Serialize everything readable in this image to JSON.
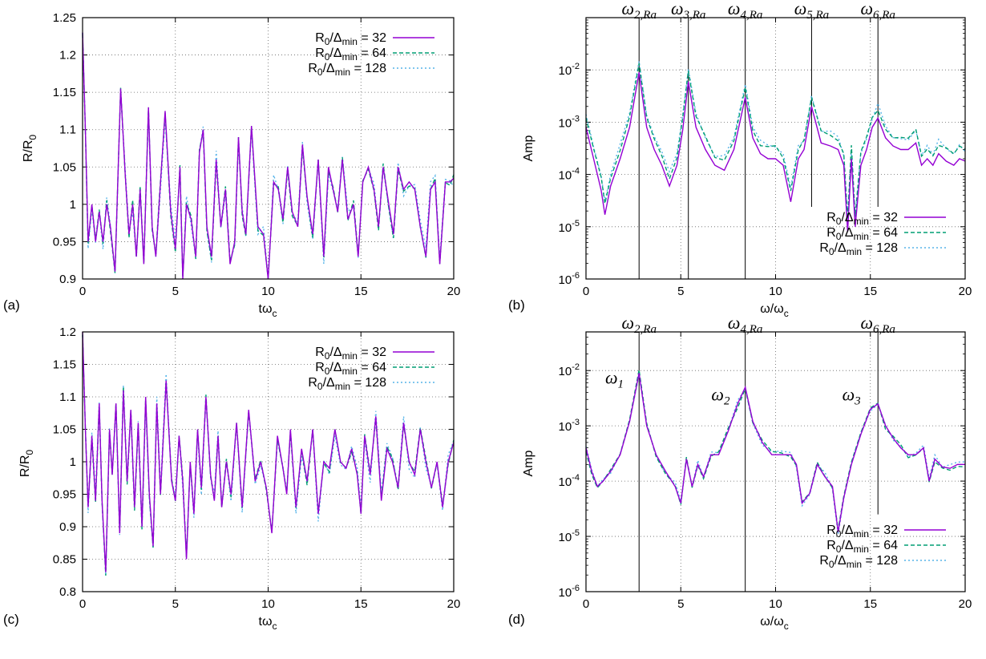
{
  "colors": {
    "r32": "#9400d3",
    "r64": "#009e73",
    "r128": "#56b4e9"
  },
  "legend_sub": "min",
  "legend_prefix": "R",
  "legend_zero": "0",
  "legend_mid": "/Δ",
  "chart_data": [
    {
      "panel": "(a)",
      "type": "line",
      "xlabel": "tω",
      "xlabel_sub": "c",
      "ylabel": "R/R",
      "ylabel_sub": "0",
      "xlim": [
        0,
        20
      ],
      "ylim": [
        0.9,
        1.25
      ],
      "yscale": "linear",
      "grid": true,
      "legend_position": "top-right",
      "xticks": [
        "0",
        "5",
        "10",
        "15",
        "20"
      ],
      "yticks": [
        "0.9",
        "0.95",
        "1",
        "1.05",
        "1.1",
        "1.15",
        "1.2",
        "1.25"
      ],
      "series": [
        {
          "name": "R0/Δmin = 32",
          "legend_value": "32",
          "style": "solid",
          "x": [
            0,
            0.15,
            0.3,
            0.5,
            0.7,
            0.9,
            1.1,
            1.3,
            1.5,
            1.75,
            2.05,
            2.3,
            2.5,
            2.7,
            2.9,
            3.1,
            3.3,
            3.55,
            3.75,
            3.95,
            4.15,
            4.45,
            4.75,
            5.0,
            5.25,
            5.4,
            5.6,
            5.85,
            6.1,
            6.3,
            6.5,
            6.7,
            6.95,
            7.2,
            7.45,
            7.7,
            7.95,
            8.2,
            8.4,
            8.6,
            8.8,
            9.1,
            9.45,
            9.75,
            10.0,
            10.3,
            10.55,
            10.8,
            11.05,
            11.3,
            11.6,
            11.85,
            12.1,
            12.4,
            12.7,
            13.0,
            13.25,
            13.5,
            13.75,
            14.0,
            14.3,
            14.6,
            14.85,
            15.1,
            15.4,
            15.7,
            15.95,
            16.2,
            16.5,
            16.75,
            17.0,
            17.3,
            17.6,
            17.9,
            18.2,
            18.5,
            18.75,
            19.0,
            19.25,
            19.55,
            19.8,
            20.0
          ],
          "y": [
            1.23,
            1.1,
            0.95,
            1.0,
            0.95,
            0.99,
            0.95,
            1.0,
            0.97,
            0.91,
            1.155,
            1.04,
            0.96,
            1.0,
            0.93,
            1.02,
            0.92,
            1.13,
            0.97,
            0.93,
            1.01,
            1.125,
            0.99,
            0.94,
            1.05,
            0.9,
            1.0,
            0.98,
            0.93,
            1.07,
            1.1,
            0.97,
            0.93,
            1.06,
            0.97,
            1.02,
            0.92,
            0.95,
            1.09,
            0.99,
            0.96,
            1.105,
            0.97,
            0.96,
            0.9,
            1.03,
            1.02,
            0.98,
            1.05,
            0.99,
            0.97,
            1.08,
            1.01,
            0.96,
            1.06,
            0.93,
            1.05,
            1.02,
            0.99,
            1.06,
            0.98,
            1.0,
            0.93,
            1.03,
            1.05,
            1.02,
            0.97,
            1.05,
            1.0,
            0.96,
            1.05,
            1.02,
            1.03,
            1.02,
            0.97,
            0.93,
            1.02,
            1.03,
            0.92,
            1.03,
            1.03,
            1.035
          ]
        },
        {
          "name": "R0/Δmin = 64",
          "legend_value": "64",
          "style": "dashed"
        },
        {
          "name": "R0/Δmin = 128",
          "legend_value": "128",
          "style": "dotted"
        }
      ]
    },
    {
      "panel": "(b)",
      "type": "line",
      "xlabel": "ω/ω",
      "xlabel_sub": "c",
      "ylabel": "Amp",
      "xlim": [
        0,
        20
      ],
      "ylim": [
        1e-06,
        0.1
      ],
      "yscale": "log",
      "grid": true,
      "legend_position": "bottom-right",
      "xticks": [
        "0",
        "5",
        "10",
        "15",
        "20"
      ],
      "yticks": [
        "-6",
        "-5",
        "-4",
        "-3",
        "-2"
      ],
      "ytick_base": "10",
      "vertical_lines": [
        {
          "label": "ω",
          "sub": "2,Ra",
          "x": 2.8
        },
        {
          "label": "ω",
          "sub": "3,Ra",
          "x": 5.4
        },
        {
          "label": "ω",
          "sub": "4,Ra",
          "x": 8.4
        },
        {
          "label": "ω",
          "sub": "5,Ra",
          "x": 11.9
        },
        {
          "label": "ω",
          "sub": "6,Ra",
          "x": 15.4
        }
      ],
      "series": [
        {
          "name": "R0/Δmin = 32",
          "legend_value": "32",
          "style": "solid",
          "x": [
            0,
            0.4,
            0.8,
            1.0,
            1.3,
            1.8,
            2.3,
            2.8,
            3.2,
            3.6,
            4.0,
            4.4,
            4.8,
            5.1,
            5.4,
            5.8,
            6.3,
            6.8,
            7.3,
            7.8,
            8.4,
            8.8,
            9.2,
            9.6,
            10.0,
            10.4,
            10.8,
            11.2,
            11.5,
            11.9,
            12.4,
            12.9,
            13.3,
            13.6,
            13.8,
            14.0,
            14.2,
            14.5,
            14.8,
            15.1,
            15.4,
            15.8,
            16.2,
            16.6,
            17.0,
            17.4,
            17.7,
            18.0,
            18.3,
            18.6,
            19.0,
            19.4,
            19.7,
            20.0
          ],
          "y": [
            0.0008,
            0.0002,
            5e-05,
            1.7e-05,
            6e-05,
            0.0002,
            0.0008,
            0.009,
            0.0008,
            0.0003,
            0.00015,
            6e-05,
            0.00015,
            0.0007,
            0.006,
            0.0008,
            0.0003,
            0.00015,
            0.00012,
            0.0003,
            0.003,
            0.0005,
            0.00025,
            0.0002,
            0.0002,
            0.00015,
            3e-05,
            0.0002,
            0.0003,
            0.002,
            0.0004,
            0.00035,
            0.0003,
            0.00015,
            8e-06,
            0.0002,
            1e-05,
            0.00015,
            0.0003,
            0.0008,
            0.0012,
            0.0005,
            0.00035,
            0.0003,
            0.0003,
            0.0004,
            0.00015,
            0.0002,
            0.00015,
            0.00025,
            0.00018,
            0.00015,
            0.0002,
            0.00018
          ]
        },
        {
          "name": "R0/Δmin = 64",
          "legend_value": "64",
          "style": "dashed"
        },
        {
          "name": "R0/Δmin = 128",
          "legend_value": "128",
          "style": "dotted"
        }
      ]
    },
    {
      "panel": "(c)",
      "type": "line",
      "xlabel": "tω",
      "xlabel_sub": "c",
      "ylabel": "R/R",
      "ylabel_sub": "0",
      "xlim": [
        0,
        20
      ],
      "ylim": [
        0.8,
        1.2
      ],
      "yscale": "linear",
      "grid": true,
      "legend_position": "top-right",
      "xticks": [
        "0",
        "5",
        "10",
        "15",
        "20"
      ],
      "yticks": [
        "0.8",
        "0.85",
        "0.9",
        "0.95",
        "1",
        "1.05",
        "1.1",
        "1.15",
        "1.2"
      ],
      "series": [
        {
          "name": "R0/Δmin = 32",
          "legend_value": "32",
          "style": "solid",
          "x": [
            0,
            0.15,
            0.3,
            0.5,
            0.7,
            0.9,
            1.05,
            1.25,
            1.45,
            1.6,
            1.8,
            2.0,
            2.2,
            2.4,
            2.6,
            2.8,
            3.0,
            3.2,
            3.4,
            3.6,
            3.8,
            4.0,
            4.2,
            4.5,
            4.8,
            5.0,
            5.2,
            5.4,
            5.6,
            5.8,
            6.0,
            6.2,
            6.4,
            6.65,
            6.9,
            7.1,
            7.3,
            7.5,
            7.75,
            8.0,
            8.3,
            8.6,
            8.95,
            9.3,
            9.6,
            9.9,
            10.2,
            10.5,
            10.8,
            11.0,
            11.2,
            11.5,
            11.8,
            12.1,
            12.4,
            12.7,
            13.0,
            13.3,
            13.6,
            13.9,
            14.2,
            14.5,
            14.8,
            15.0,
            15.2,
            15.5,
            15.8,
            16.1,
            16.4,
            16.7,
            17.0,
            17.3,
            17.6,
            17.9,
            18.2,
            18.5,
            18.8,
            19.1,
            19.4,
            19.7,
            20.0
          ],
          "y": [
            1.2,
            1.05,
            0.93,
            1.04,
            0.94,
            1.09,
            0.94,
            0.83,
            1.05,
            0.98,
            1.09,
            0.89,
            1.11,
            0.97,
            1.08,
            0.93,
            1.06,
            0.9,
            1.1,
            0.95,
            0.87,
            1.09,
            0.95,
            1.125,
            0.97,
            0.94,
            1.04,
            0.97,
            0.85,
            1.0,
            0.92,
            1.05,
            0.96,
            1.1,
            0.98,
            0.94,
            1.04,
            0.93,
            1.0,
            0.95,
            1.06,
            0.93,
            1.08,
            0.97,
            1.0,
            0.96,
            0.89,
            1.04,
            0.99,
            0.95,
            1.05,
            0.93,
            1.02,
            0.97,
            1.05,
            0.92,
            1.0,
            0.99,
            1.05,
            1.0,
            0.99,
            1.02,
            0.98,
            0.92,
            1.04,
            0.98,
            1.07,
            0.94,
            1.02,
            1.0,
            0.96,
            1.06,
            1.0,
            0.98,
            1.05,
            1.0,
            0.96,
            1.0,
            0.93,
            1.0,
            1.03
          ]
        },
        {
          "name": "R0/Δmin = 64",
          "legend_value": "64",
          "style": "dashed"
        },
        {
          "name": "R0/Δmin = 128",
          "legend_value": "128",
          "style": "dotted"
        }
      ]
    },
    {
      "panel": "(d)",
      "type": "line",
      "xlabel": "ω/ω",
      "xlabel_sub": "c",
      "ylabel": "Amp",
      "xlim": [
        0,
        20
      ],
      "ylim": [
        1e-06,
        0.05
      ],
      "yscale": "log",
      "grid": true,
      "legend_position": "bottom-right",
      "xticks": [
        "0",
        "5",
        "10",
        "15",
        "20"
      ],
      "yticks": [
        "-6",
        "-5",
        "-4",
        "-3",
        "-2"
      ],
      "ytick_base": "10",
      "vertical_lines": [
        {
          "label": "ω",
          "sub": "2,Ra",
          "x": 2.8
        },
        {
          "label": "ω",
          "sub": "4,Ra",
          "x": 8.4
        },
        {
          "label": "ω",
          "sub": "6,Ra",
          "x": 15.4
        }
      ],
      "peak_labels": [
        {
          "label": "ω",
          "sub": "1",
          "x": 1.5,
          "y": 0.0058
        },
        {
          "label": "ω",
          "sub": "2",
          "x": 7.1,
          "y": 0.0029
        },
        {
          "label": "ω",
          "sub": "3",
          "x": 14.0,
          "y": 0.0029
        }
      ],
      "series": [
        {
          "name": "R0/Δmin = 32",
          "legend_value": "32",
          "style": "solid",
          "x": [
            0,
            0.3,
            0.6,
            0.9,
            1.3,
            1.8,
            2.3,
            2.8,
            3.2,
            3.7,
            4.2,
            4.7,
            5.0,
            5.3,
            5.6,
            5.9,
            6.2,
            6.6,
            7.0,
            7.5,
            8.0,
            8.4,
            8.8,
            9.3,
            9.8,
            10.3,
            10.8,
            11.1,
            11.4,
            11.8,
            12.2,
            12.6,
            13.0,
            13.3,
            13.6,
            14.0,
            14.5,
            15.0,
            15.4,
            15.8,
            16.2,
            16.6,
            17.0,
            17.4,
            17.8,
            18.1,
            18.4,
            18.8,
            19.2,
            19.6,
            20.0
          ],
          "y": [
            0.0004,
            0.00015,
            8e-05,
            0.0001,
            0.00015,
            0.0003,
            0.0012,
            0.009,
            0.001,
            0.0003,
            0.00015,
            8e-05,
            4e-05,
            0.00025,
            8e-05,
            0.0002,
            0.00012,
            0.0003,
            0.0003,
            0.0008,
            0.0025,
            0.005,
            0.0012,
            0.0005,
            0.0003,
            0.0003,
            0.0003,
            0.0002,
            4e-05,
            6e-05,
            0.0002,
            0.00012,
            8e-05,
            1.2e-05,
            5e-05,
            0.0002,
            0.0007,
            0.002,
            0.0025,
            0.001,
            0.0006,
            0.0004,
            0.0003,
            0.0003,
            0.0004,
            0.0001,
            0.00025,
            0.00018,
            0.00017,
            0.0002,
            0.0002
          ]
        },
        {
          "name": "R0/Δmin = 64",
          "legend_value": "64",
          "style": "dashed"
        },
        {
          "name": "R0/Δmin = 128",
          "legend_value": "128",
          "style": "dotted"
        }
      ]
    }
  ]
}
